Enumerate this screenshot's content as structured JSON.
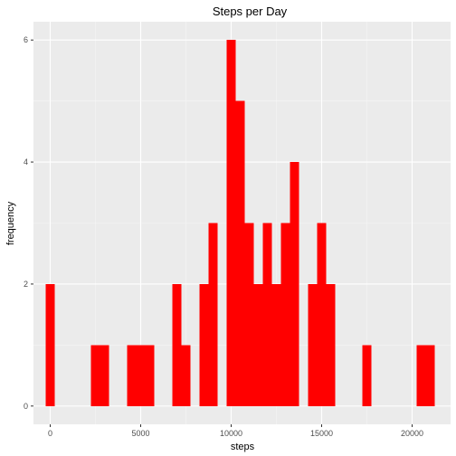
{
  "chart_data": {
    "type": "bar",
    "title": "Steps per Day",
    "xlabel": "steps",
    "ylabel": "frequency",
    "xlim": [
      -925,
      22125
    ],
    "ylim": [
      -0.3,
      6.3
    ],
    "x_ticks": [
      0,
      5000,
      10000,
      15000,
      20000
    ],
    "y_ticks": [
      0,
      2,
      4,
      6
    ],
    "bin_width": 500,
    "grid": true,
    "legend": "none",
    "bars": [
      {
        "x": 0,
        "count": 2
      },
      {
        "x": 2500,
        "count": 1
      },
      {
        "x": 3000,
        "count": 1
      },
      {
        "x": 4500,
        "count": 1
      },
      {
        "x": 5000,
        "count": 1
      },
      {
        "x": 5500,
        "count": 1
      },
      {
        "x": 7000,
        "count": 2
      },
      {
        "x": 7500,
        "count": 1
      },
      {
        "x": 8500,
        "count": 2
      },
      {
        "x": 9000,
        "count": 3
      },
      {
        "x": 10000,
        "count": 6
      },
      {
        "x": 10500,
        "count": 5
      },
      {
        "x": 11000,
        "count": 3
      },
      {
        "x": 11500,
        "count": 2
      },
      {
        "x": 12000,
        "count": 3
      },
      {
        "x": 12500,
        "count": 2
      },
      {
        "x": 13000,
        "count": 3
      },
      {
        "x": 13500,
        "count": 4
      },
      {
        "x": 14500,
        "count": 2
      },
      {
        "x": 15000,
        "count": 3
      },
      {
        "x": 15500,
        "count": 2
      },
      {
        "x": 17500,
        "count": 1
      },
      {
        "x": 20500,
        "count": 1
      },
      {
        "x": 21000,
        "count": 1
      }
    ]
  },
  "colors": {
    "bar": "#ff0000",
    "panel": "#ebebeb",
    "grid_major": "#ffffff",
    "grid_minor": "#f5f5f5"
  }
}
